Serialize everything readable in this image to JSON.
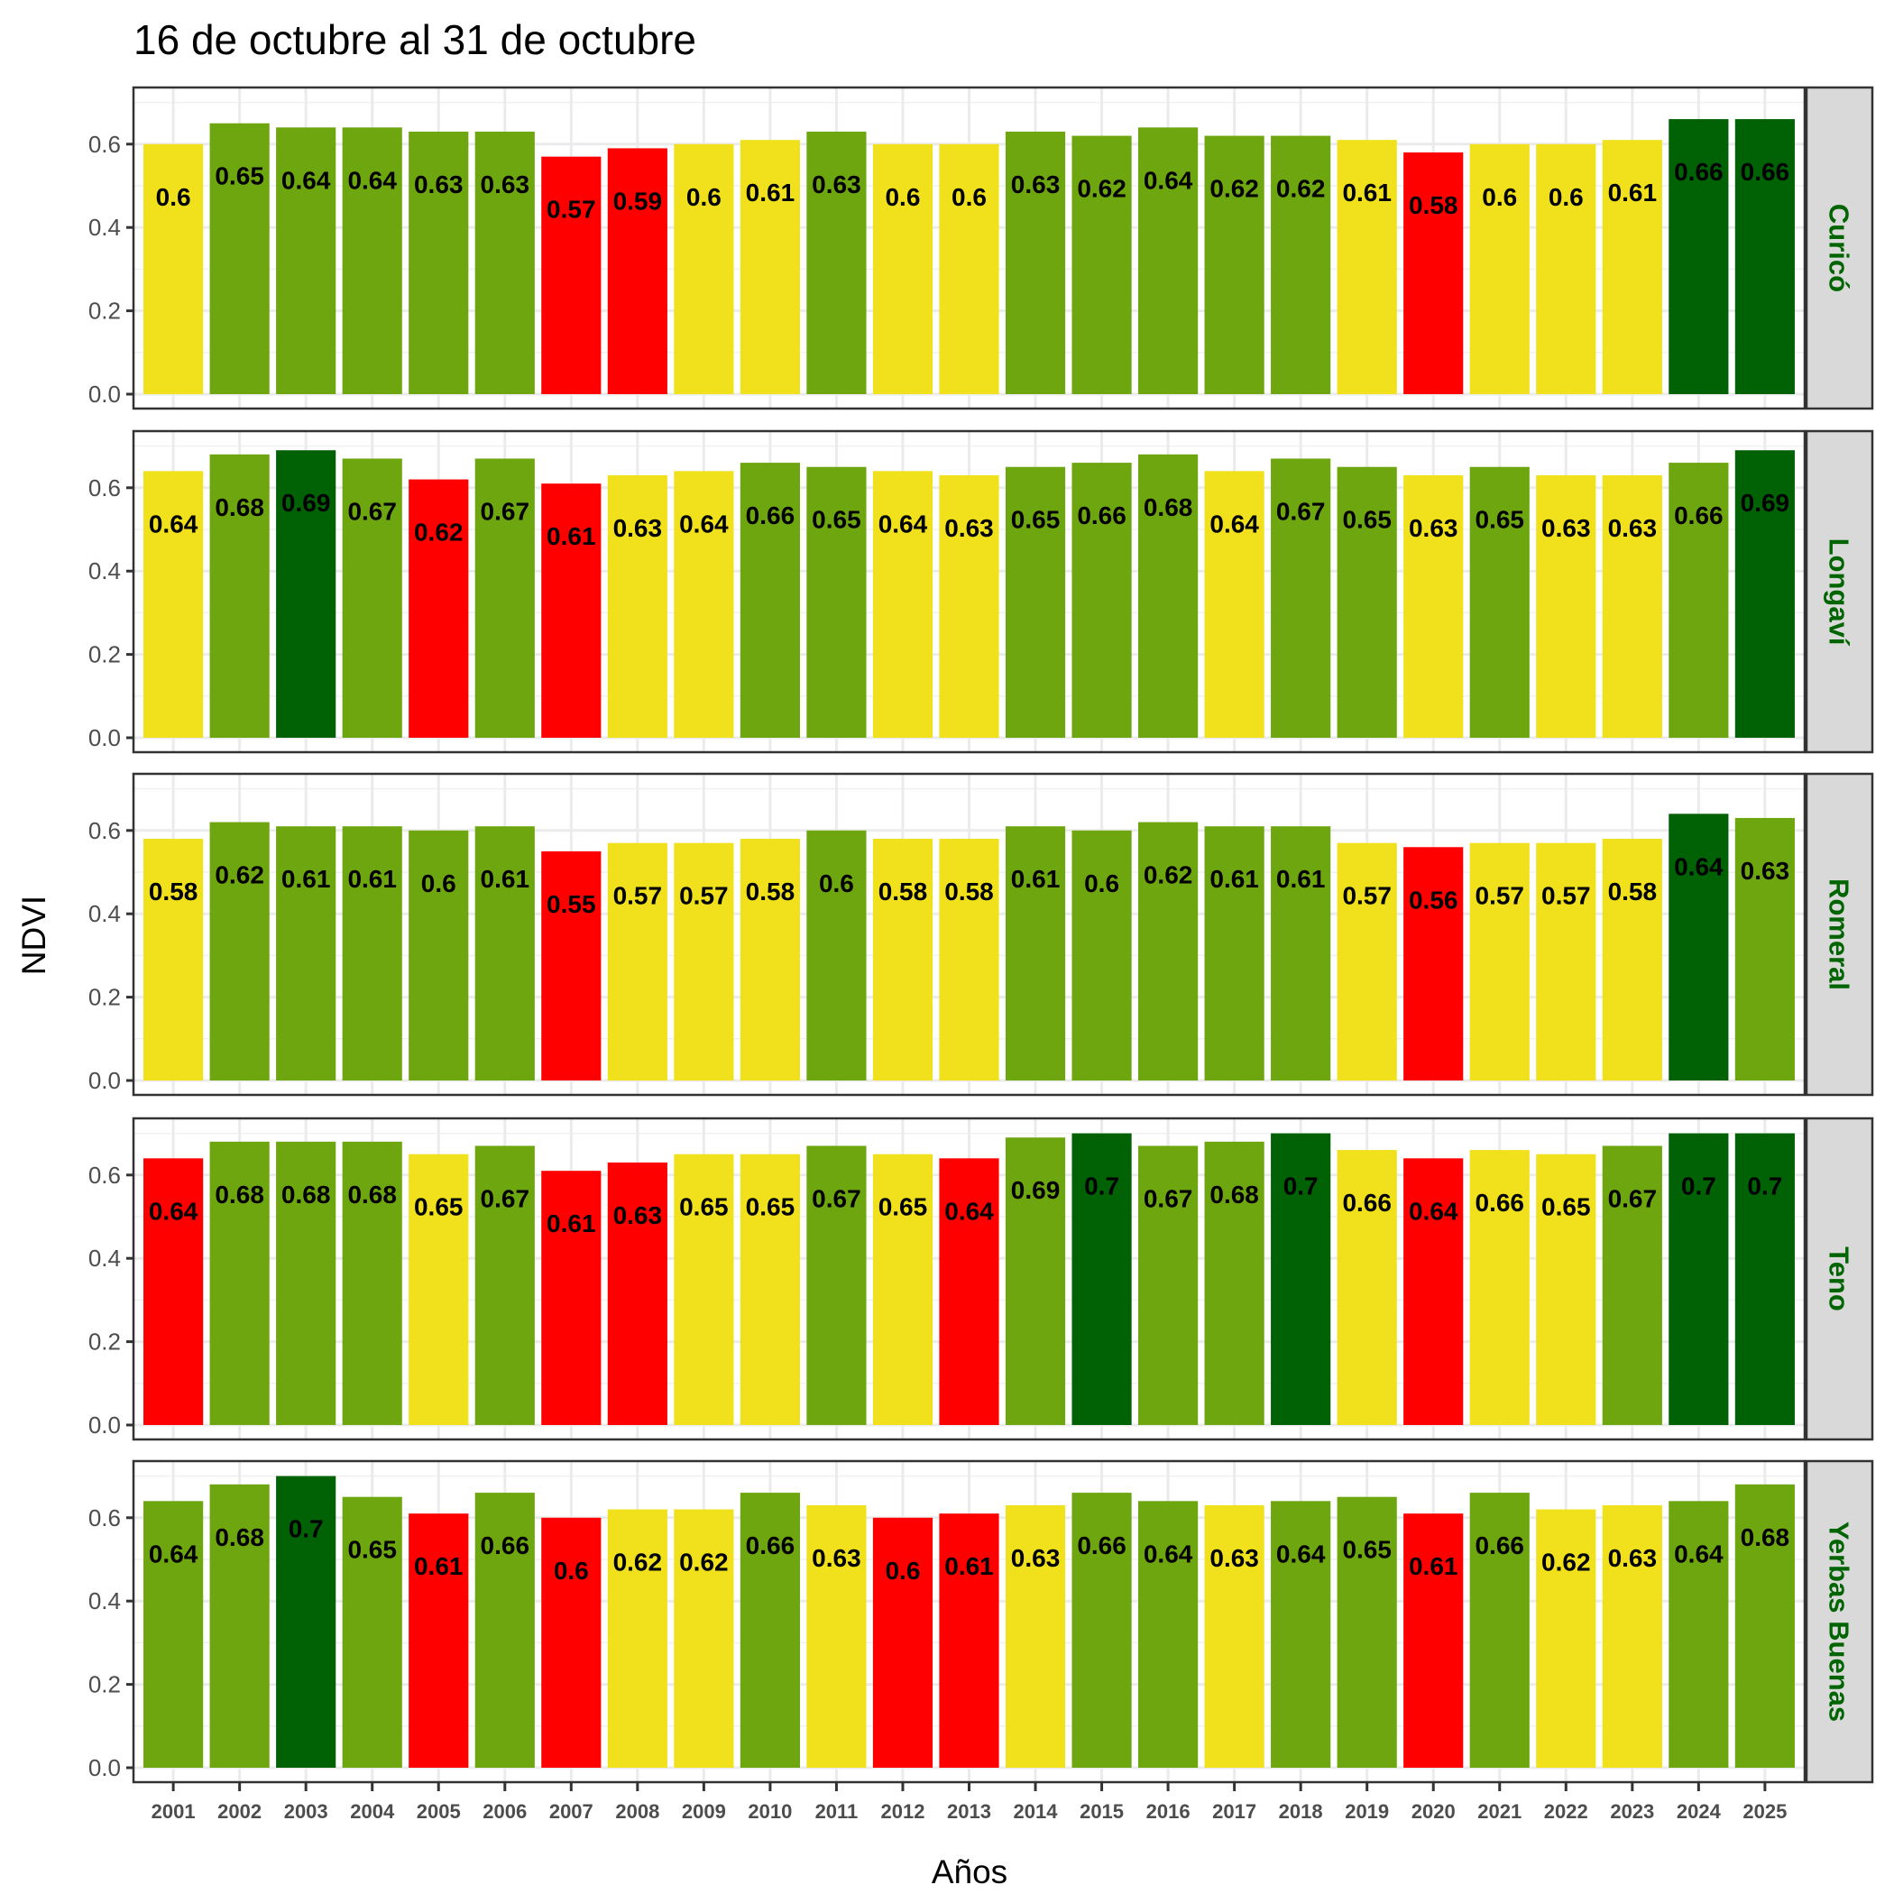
{
  "chart_data": {
    "type": "bar",
    "title": "16 de octubre al 31 de octubre",
    "xlabel": "Años",
    "ylabel": "NDVI",
    "ylim": [
      0,
      0.728
    ],
    "yticks": [
      "0.0",
      "0.2",
      "0.4",
      "0.6"
    ],
    "ytick_values": [
      0,
      0.2,
      0.4,
      0.6
    ],
    "grid": true,
    "facet": "vertical, strip labels on right",
    "categories": [
      "2001",
      "2002",
      "2003",
      "2004",
      "2005",
      "2006",
      "2007",
      "2008",
      "2009",
      "2010",
      "2011",
      "2012",
      "2013",
      "2014",
      "2015",
      "2016",
      "2017",
      "2018",
      "2019",
      "2020",
      "2021",
      "2022",
      "2023",
      "2024",
      "2025"
    ],
    "color_scale": {
      "red": "#ff0000",
      "yellow": "#f0e11c",
      "light_green": "#6ea610",
      "dark_green": "#006105"
    },
    "panels": [
      {
        "name": "Curicó",
        "values": [
          0.6,
          0.65,
          0.64,
          0.64,
          0.63,
          0.63,
          0.57,
          0.59,
          0.6,
          0.61,
          0.63,
          0.6,
          0.6,
          0.63,
          0.62,
          0.64,
          0.62,
          0.62,
          0.61,
          0.58,
          0.6,
          0.6,
          0.61,
          0.66,
          0.66
        ],
        "labels": [
          "0.6",
          "0.65",
          "0.64",
          "0.64",
          "0.63",
          "0.63",
          "0.57",
          "0.59",
          "0.6",
          "0.61",
          "0.63",
          "0.6",
          "0.6",
          "0.63",
          "0.62",
          "0.64",
          "0.62",
          "0.62",
          "0.61",
          "0.58",
          "0.6",
          "0.6",
          "0.61",
          "0.66",
          "0.66"
        ],
        "colors": [
          "yellow",
          "light_green",
          "light_green",
          "light_green",
          "light_green",
          "light_green",
          "red",
          "red",
          "yellow",
          "yellow",
          "light_green",
          "yellow",
          "yellow",
          "light_green",
          "light_green",
          "light_green",
          "light_green",
          "light_green",
          "yellow",
          "red",
          "yellow",
          "yellow",
          "yellow",
          "dark_green",
          "dark_green"
        ]
      },
      {
        "name": "Longaví",
        "values": [
          0.64,
          0.68,
          0.69,
          0.67,
          0.62,
          0.67,
          0.61,
          0.63,
          0.64,
          0.66,
          0.65,
          0.64,
          0.63,
          0.65,
          0.66,
          0.68,
          0.64,
          0.67,
          0.65,
          0.63,
          0.65,
          0.63,
          0.63,
          0.66,
          0.69
        ],
        "labels": [
          "0.64",
          "0.68",
          "0.69",
          "0.67",
          "0.62",
          "0.67",
          "0.61",
          "0.63",
          "0.64",
          "0.66",
          "0.65",
          "0.64",
          "0.63",
          "0.65",
          "0.66",
          "0.68",
          "0.64",
          "0.67",
          "0.65",
          "0.63",
          "0.65",
          "0.63",
          "0.63",
          "0.66",
          "0.69"
        ],
        "colors": [
          "yellow",
          "light_green",
          "dark_green",
          "light_green",
          "red",
          "light_green",
          "red",
          "yellow",
          "yellow",
          "light_green",
          "light_green",
          "yellow",
          "yellow",
          "light_green",
          "light_green",
          "light_green",
          "yellow",
          "light_green",
          "light_green",
          "yellow",
          "light_green",
          "yellow",
          "yellow",
          "light_green",
          "dark_green"
        ]
      },
      {
        "name": "Romeral",
        "values": [
          0.58,
          0.62,
          0.61,
          0.61,
          0.6,
          0.61,
          0.55,
          0.57,
          0.57,
          0.58,
          0.6,
          0.58,
          0.58,
          0.61,
          0.6,
          0.62,
          0.61,
          0.61,
          0.57,
          0.56,
          0.57,
          0.57,
          0.58,
          0.64,
          0.63
        ],
        "labels": [
          "0.58",
          "0.62",
          "0.61",
          "0.61",
          "0.6",
          "0.61",
          "0.55",
          "0.57",
          "0.57",
          "0.58",
          "0.6",
          "0.58",
          "0.58",
          "0.61",
          "0.6",
          "0.62",
          "0.61",
          "0.61",
          "0.57",
          "0.56",
          "0.57",
          "0.57",
          "0.58",
          "0.64",
          "0.63"
        ],
        "colors": [
          "yellow",
          "light_green",
          "light_green",
          "light_green",
          "light_green",
          "light_green",
          "red",
          "yellow",
          "yellow",
          "yellow",
          "light_green",
          "yellow",
          "yellow",
          "light_green",
          "light_green",
          "light_green",
          "light_green",
          "light_green",
          "yellow",
          "red",
          "yellow",
          "yellow",
          "yellow",
          "dark_green",
          "light_green"
        ]
      },
      {
        "name": "Teno",
        "values": [
          0.64,
          0.68,
          0.68,
          0.68,
          0.65,
          0.67,
          0.61,
          0.63,
          0.65,
          0.65,
          0.67,
          0.65,
          0.64,
          0.69,
          0.7,
          0.67,
          0.68,
          0.7,
          0.66,
          0.64,
          0.66,
          0.65,
          0.67,
          0.7,
          0.7
        ],
        "labels": [
          "0.64",
          "0.68",
          "0.68",
          "0.68",
          "0.65",
          "0.67",
          "0.61",
          "0.63",
          "0.65",
          "0.65",
          "0.67",
          "0.65",
          "0.64",
          "0.69",
          "0.7",
          "0.67",
          "0.68",
          "0.7",
          "0.66",
          "0.64",
          "0.66",
          "0.65",
          "0.67",
          "0.7",
          "0.7"
        ],
        "colors": [
          "red",
          "light_green",
          "light_green",
          "light_green",
          "yellow",
          "light_green",
          "red",
          "red",
          "yellow",
          "yellow",
          "light_green",
          "yellow",
          "red",
          "light_green",
          "dark_green",
          "light_green",
          "light_green",
          "dark_green",
          "yellow",
          "red",
          "yellow",
          "yellow",
          "light_green",
          "dark_green",
          "dark_green"
        ]
      },
      {
        "name": "Yerbas Buenas",
        "values": [
          0.64,
          0.68,
          0.7,
          0.65,
          0.61,
          0.66,
          0.6,
          0.62,
          0.62,
          0.66,
          0.63,
          0.6,
          0.61,
          0.63,
          0.66,
          0.64,
          0.63,
          0.64,
          0.65,
          0.61,
          0.66,
          0.62,
          0.63,
          0.64,
          0.68
        ],
        "labels": [
          "0.64",
          "0.68",
          "0.7",
          "0.65",
          "0.61",
          "0.66",
          "0.6",
          "0.62",
          "0.62",
          "0.66",
          "0.63",
          "0.6",
          "0.61",
          "0.63",
          "0.66",
          "0.64",
          "0.63",
          "0.64",
          "0.65",
          "0.61",
          "0.66",
          "0.62",
          "0.63",
          "0.64",
          "0.68"
        ],
        "colors": [
          "light_green",
          "light_green",
          "dark_green",
          "light_green",
          "red",
          "light_green",
          "red",
          "yellow",
          "yellow",
          "light_green",
          "yellow",
          "red",
          "red",
          "yellow",
          "light_green",
          "light_green",
          "yellow",
          "light_green",
          "light_green",
          "red",
          "light_green",
          "yellow",
          "yellow",
          "light_green",
          "light_green"
        ]
      }
    ]
  }
}
